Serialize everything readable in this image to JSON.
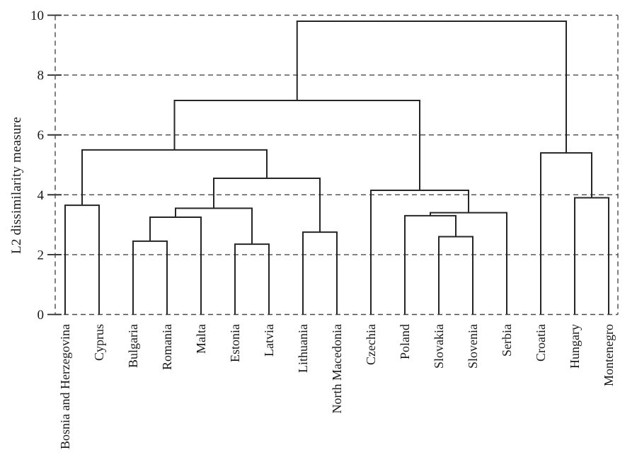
{
  "chart_data": {
    "type": "dendrogram",
    "title": "",
    "xlabel": "",
    "ylabel": "L2 dissimilarity measure",
    "ylim": [
      0,
      10
    ],
    "yticks": [
      0,
      2,
      4,
      6,
      8,
      10
    ],
    "grid": {
      "horizontal_gridlines": "dashed at every y tick",
      "plot_border": "dashed rectangle (left, right, top and bottom coincide with gridlines 10 and 0)",
      "legend": "none"
    },
    "leaves": [
      "Bosnia and Herzegovina",
      "Cyprus",
      "Bulgaria",
      "Romania",
      "Malta",
      "Estonia",
      "Latvia",
      "Lithuania",
      "North Macedonia",
      "Czechia",
      "Poland",
      "Slovakia",
      "Slovenia",
      "Serbia",
      "Croatia",
      "Hungary",
      "Montenegro"
    ],
    "merges": [
      {
        "left": "leaf:0",
        "right": "leaf:1",
        "height": 3.65
      },
      {
        "left": "leaf:2",
        "right": "leaf:3",
        "height": 2.45
      },
      {
        "left": "merge:1",
        "right": "leaf:4",
        "height": 3.25
      },
      {
        "left": "leaf:5",
        "right": "leaf:6",
        "height": 2.35
      },
      {
        "left": "merge:2",
        "right": "merge:3",
        "height": 3.55
      },
      {
        "left": "leaf:7",
        "right": "leaf:8",
        "height": 2.75
      },
      {
        "left": "merge:4",
        "right": "merge:5",
        "height": 4.55
      },
      {
        "left": "merge:0",
        "right": "merge:6",
        "height": 5.5
      },
      {
        "left": "leaf:11",
        "right": "leaf:12",
        "height": 2.6
      },
      {
        "left": "leaf:10",
        "right": "merge:8",
        "height": 3.3
      },
      {
        "left": "merge:9",
        "right": "leaf:13",
        "height": 3.4
      },
      {
        "left": "leaf:9",
        "right": "merge:10",
        "height": 4.15
      },
      {
        "left": "merge:7",
        "right": "merge:11",
        "height": 7.15
      },
      {
        "left": "leaf:15",
        "right": "leaf:16",
        "height": 3.9
      },
      {
        "left": "leaf:14",
        "right": "merge:13",
        "height": 5.4
      },
      {
        "left": "merge:12",
        "right": "merge:14",
        "height": 9.8
      }
    ],
    "colors": {
      "tree_line": "#262626",
      "grid_line": "#4a4a4a",
      "text": "#1a1a1a",
      "background": "#ffffff"
    }
  }
}
